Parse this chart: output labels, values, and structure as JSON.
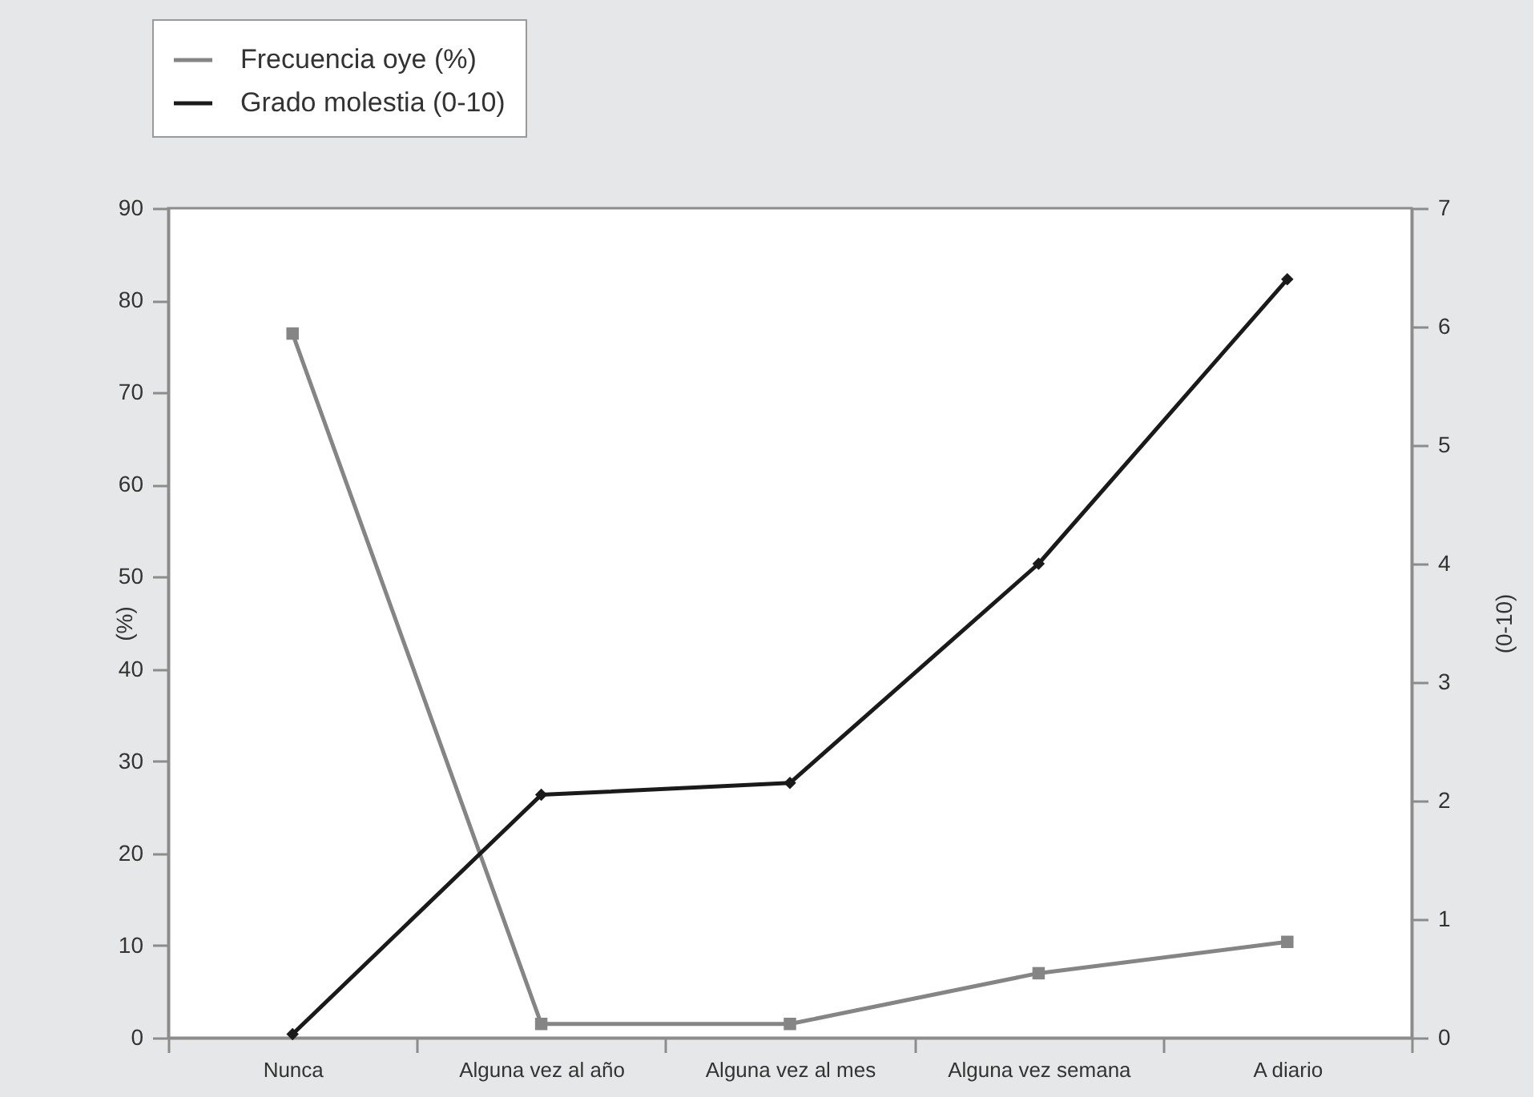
{
  "chart_data": {
    "type": "line",
    "categories": [
      "Nunca",
      "Alguna vez al año",
      "Alguna vez al mes",
      "Alguna vez semana",
      "A diario"
    ],
    "ylabel": "(%)",
    "y2label": "(0-10)",
    "ylim": [
      0,
      90
    ],
    "yticks": [
      0,
      10,
      20,
      30,
      40,
      50,
      60,
      70,
      80,
      90
    ],
    "y2lim": [
      0,
      7
    ],
    "y2ticks": [
      0,
      1,
      2,
      3,
      4,
      5,
      6,
      7
    ],
    "legend": "top left",
    "line_style": "solid",
    "series": [
      {
        "name": "Frecuencia oye (%)",
        "color": "#858585",
        "marker": "square",
        "values": [
          76.4,
          1.5,
          1.5,
          7,
          10.4
        ]
      },
      {
        "name": "Grado molestia (0-10)",
        "color": "#1a1a1a",
        "marker": "diamond",
        "axis": "y2",
        "values": [
          0.03,
          2.05,
          2.15,
          4,
          6.4
        ]
      }
    ]
  }
}
